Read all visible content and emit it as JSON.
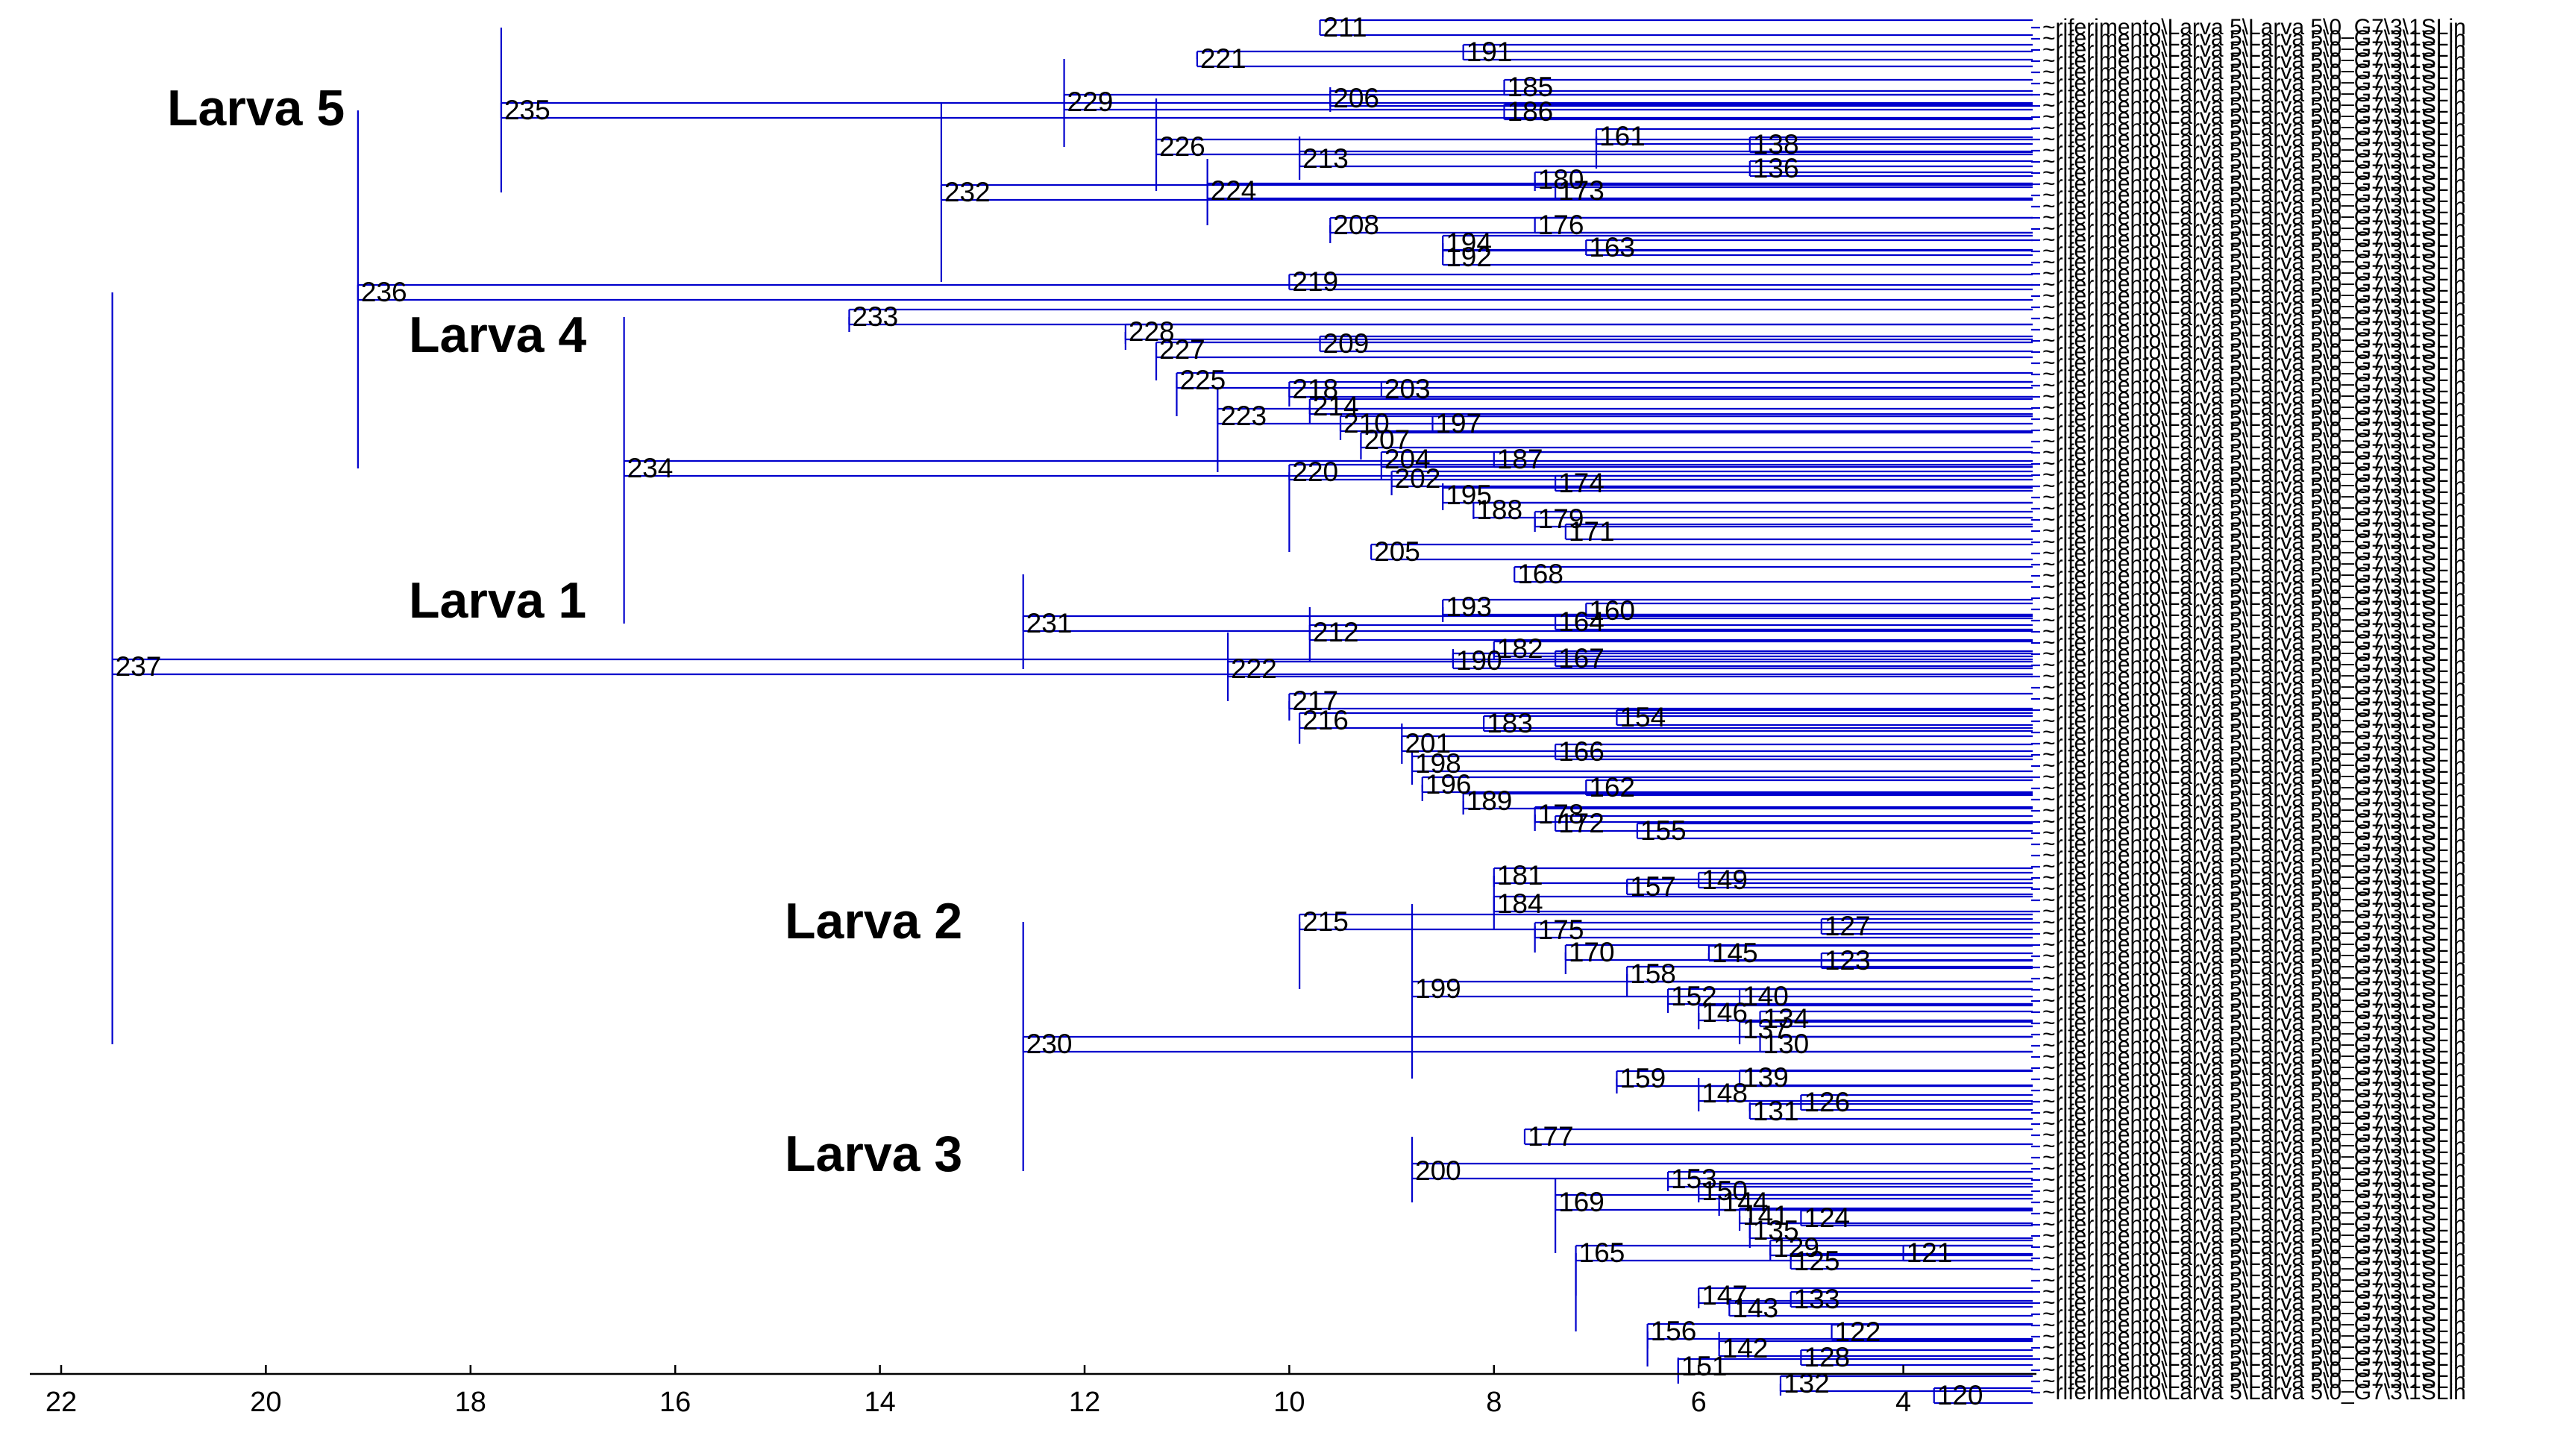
{
  "groups": {
    "larva5": "Larva 5",
    "larva4": "Larva 4",
    "larva1": "Larva 1",
    "larva2": "Larva 2",
    "larva3": "Larva 3"
  },
  "leaf_label_pattern": "~riferimento\\Larva 5\\Larva 5\\0_G7\\3\\1SLin",
  "axis": {
    "min": 3,
    "max": 22.5,
    "ticks": [
      22,
      20,
      18,
      16,
      14,
      12,
      10,
      8,
      6,
      4
    ]
  },
  "chart_data": {
    "type": "dendrogram",
    "x_unit": "distance",
    "nodes": [
      {
        "id": "237",
        "dist": 21.5,
        "row": null
      },
      {
        "id": "236",
        "dist": 19.1
      },
      {
        "id": "235",
        "dist": 17.7
      },
      {
        "id": "211",
        "dist": 9.7
      },
      {
        "id": "232",
        "dist": 13.4
      },
      {
        "id": "229",
        "dist": 12.2
      },
      {
        "id": "221",
        "dist": 10.9
      },
      {
        "id": "191",
        "dist": 8.3
      },
      {
        "id": "226",
        "dist": 11.3
      },
      {
        "id": "206",
        "dist": 9.6
      },
      {
        "id": "185",
        "dist": 7.9
      },
      {
        "id": "186",
        "dist": 7.9
      },
      {
        "id": "224",
        "dist": 10.8
      },
      {
        "id": "213",
        "dist": 9.9
      },
      {
        "id": "161",
        "dist": 7.0
      },
      {
        "id": "138",
        "dist": 5.5
      },
      {
        "id": "136",
        "dist": 5.5
      },
      {
        "id": "180",
        "dist": 7.6
      },
      {
        "id": "173",
        "dist": 7.4
      },
      {
        "id": "208",
        "dist": 9.6
      },
      {
        "id": "176",
        "dist": 7.6
      },
      {
        "id": "194",
        "dist": 8.5
      },
      {
        "id": "192",
        "dist": 8.5
      },
      {
        "id": "163",
        "dist": 7.1
      },
      {
        "id": "219",
        "dist": 10.0
      },
      {
        "id": "234",
        "dist": 16.5
      },
      {
        "id": "233",
        "dist": 14.3
      },
      {
        "id": "228",
        "dist": 11.6
      },
      {
        "id": "227",
        "dist": 11.3
      },
      {
        "id": "209",
        "dist": 9.7
      },
      {
        "id": "225",
        "dist": 11.1
      },
      {
        "id": "223",
        "dist": 10.7
      },
      {
        "id": "218",
        "dist": 10.0
      },
      {
        "id": "214",
        "dist": 9.8
      },
      {
        "id": "203",
        "dist": 9.1
      },
      {
        "id": "210",
        "dist": 9.5
      },
      {
        "id": "207",
        "dist": 9.3
      },
      {
        "id": "197",
        "dist": 8.6
      },
      {
        "id": "204",
        "dist": 9.1
      },
      {
        "id": "202",
        "dist": 9.0
      },
      {
        "id": "187",
        "dist": 8.0
      },
      {
        "id": "195",
        "dist": 8.5
      },
      {
        "id": "188",
        "dist": 8.2
      },
      {
        "id": "174",
        "dist": 7.4
      },
      {
        "id": "179",
        "dist": 7.6
      },
      {
        "id": "171",
        "dist": 7.3
      },
      {
        "id": "220",
        "dist": 10.0
      },
      {
        "id": "205",
        "dist": 9.2
      },
      {
        "id": "231",
        "dist": 12.6
      },
      {
        "id": "168",
        "dist": 7.8
      },
      {
        "id": "222",
        "dist": 10.6
      },
      {
        "id": "212",
        "dist": 9.8
      },
      {
        "id": "193",
        "dist": 8.5
      },
      {
        "id": "160",
        "dist": 7.1
      },
      {
        "id": "164",
        "dist": 7.4
      },
      {
        "id": "190",
        "dist": 8.4
      },
      {
        "id": "182",
        "dist": 8.0
      },
      {
        "id": "167",
        "dist": 7.4
      },
      {
        "id": "217",
        "dist": 10.0
      },
      {
        "id": "216",
        "dist": 9.9
      },
      {
        "id": "183",
        "dist": 8.1
      },
      {
        "id": "154",
        "dist": 6.8
      },
      {
        "id": "201",
        "dist": 8.9
      },
      {
        "id": "198",
        "dist": 8.8
      },
      {
        "id": "166",
        "dist": 7.4
      },
      {
        "id": "196",
        "dist": 8.7
      },
      {
        "id": "162",
        "dist": 7.1
      },
      {
        "id": "189",
        "dist": 8.3
      },
      {
        "id": "178",
        "dist": 7.6
      },
      {
        "id": "172",
        "dist": 7.4
      },
      {
        "id": "155",
        "dist": 6.6
      },
      {
        "id": "230",
        "dist": 12.6
      },
      {
        "id": "215",
        "dist": 9.9
      },
      {
        "id": "181",
        "dist": 8.0
      },
      {
        "id": "157",
        "dist": 6.7
      },
      {
        "id": "149",
        "dist": 6.0
      },
      {
        "id": "184",
        "dist": 8.0
      },
      {
        "id": "199",
        "dist": 8.8
      },
      {
        "id": "175",
        "dist": 7.6
      },
      {
        "id": "127",
        "dist": 4.8
      },
      {
        "id": "170",
        "dist": 7.3
      },
      {
        "id": "145",
        "dist": 5.9
      },
      {
        "id": "123",
        "dist": 4.8
      },
      {
        "id": "158",
        "dist": 6.7
      },
      {
        "id": "152",
        "dist": 6.3
      },
      {
        "id": "140",
        "dist": 5.6
      },
      {
        "id": "146",
        "dist": 6.0
      },
      {
        "id": "134",
        "dist": 5.4
      },
      {
        "id": "137",
        "dist": 5.6
      },
      {
        "id": "130",
        "dist": 5.4
      },
      {
        "id": "159",
        "dist": 6.8
      },
      {
        "id": "148",
        "dist": 6.0
      },
      {
        "id": "139",
        "dist": 5.6
      },
      {
        "id": "131",
        "dist": 5.5
      },
      {
        "id": "126",
        "dist": 5.0
      },
      {
        "id": "200",
        "dist": 8.8
      },
      {
        "id": "177",
        "dist": 7.7
      },
      {
        "id": "169",
        "dist": 7.4
      },
      {
        "id": "165",
        "dist": 7.2
      },
      {
        "id": "153",
        "dist": 6.3
      },
      {
        "id": "150",
        "dist": 6.0
      },
      {
        "id": "144",
        "dist": 5.8
      },
      {
        "id": "141",
        "dist": 5.6
      },
      {
        "id": "135",
        "dist": 5.5
      },
      {
        "id": "124",
        "dist": 5.0
      },
      {
        "id": "129",
        "dist": 5.3
      },
      {
        "id": "125",
        "dist": 5.1
      },
      {
        "id": "121",
        "dist": 4.0
      },
      {
        "id": "147",
        "dist": 6.0
      },
      {
        "id": "143",
        "dist": 5.7
      },
      {
        "id": "133",
        "dist": 5.1
      },
      {
        "id": "156",
        "dist": 6.5
      },
      {
        "id": "142",
        "dist": 5.8
      },
      {
        "id": "122",
        "dist": 4.7
      },
      {
        "id": "151",
        "dist": 6.2
      },
      {
        "id": "128",
        "dist": 5.0
      },
      {
        "id": "132",
        "dist": 5.2
      },
      {
        "id": "120",
        "dist": 3.7
      }
    ]
  }
}
